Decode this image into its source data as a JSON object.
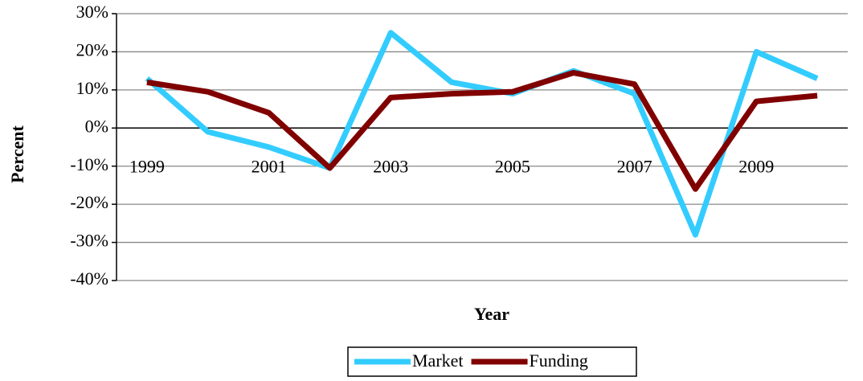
{
  "chart_data": {
    "type": "line",
    "x_label": "Year",
    "y_label": "Percent",
    "categories": [
      "1999",
      null,
      "2001",
      null,
      "2003",
      null,
      "2005",
      null,
      "2007",
      null,
      "2009",
      null
    ],
    "series": [
      {
        "name": "Market",
        "color": "#33ccff",
        "values": [
          13,
          -1,
          -5,
          -10.5,
          25,
          12,
          9,
          15,
          9,
          -28,
          20,
          13
        ]
      },
      {
        "name": "Funding",
        "color": "#800000",
        "values": [
          12,
          9.5,
          4,
          -10.5,
          8,
          9,
          9.5,
          14.5,
          11.5,
          -16,
          7,
          8.5
        ]
      }
    ],
    "ylim": [
      -40,
      30
    ],
    "yticks": [
      {
        "value": -40,
        "label": "-40%"
      },
      {
        "value": -30,
        "label": "-30%"
      },
      {
        "value": -20,
        "label": "-20%"
      },
      {
        "value": -10,
        "label": "-10%"
      },
      {
        "value": 0,
        "label": "0%"
      },
      {
        "value": 10,
        "label": "10%"
      },
      {
        "value": 20,
        "label": "20%"
      },
      {
        "value": 30,
        "label": "30%"
      }
    ],
    "grid": true,
    "legend": "bottom"
  }
}
